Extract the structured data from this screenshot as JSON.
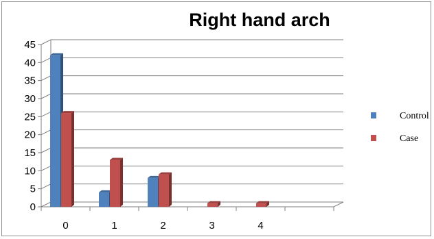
{
  "chart_data": {
    "type": "bar",
    "title": "Right hand arch",
    "categories": [
      "0",
      "1",
      "2",
      "3",
      "4"
    ],
    "series": [
      {
        "name": "Control",
        "values": [
          42,
          4,
          8,
          0,
          0
        ],
        "color": "#4f81bd"
      },
      {
        "name": "Case",
        "values": [
          26,
          13,
          9,
          1,
          1
        ],
        "color": "#c0504d"
      }
    ],
    "ylim": [
      0,
      45
    ],
    "yticks": [
      "0",
      "5",
      "10",
      "15",
      "20",
      "25",
      "30",
      "35",
      "40",
      "45"
    ],
    "grid": true,
    "legend": "right",
    "style": "3d-clustered-column",
    "xlabel": "",
    "ylabel": ""
  }
}
